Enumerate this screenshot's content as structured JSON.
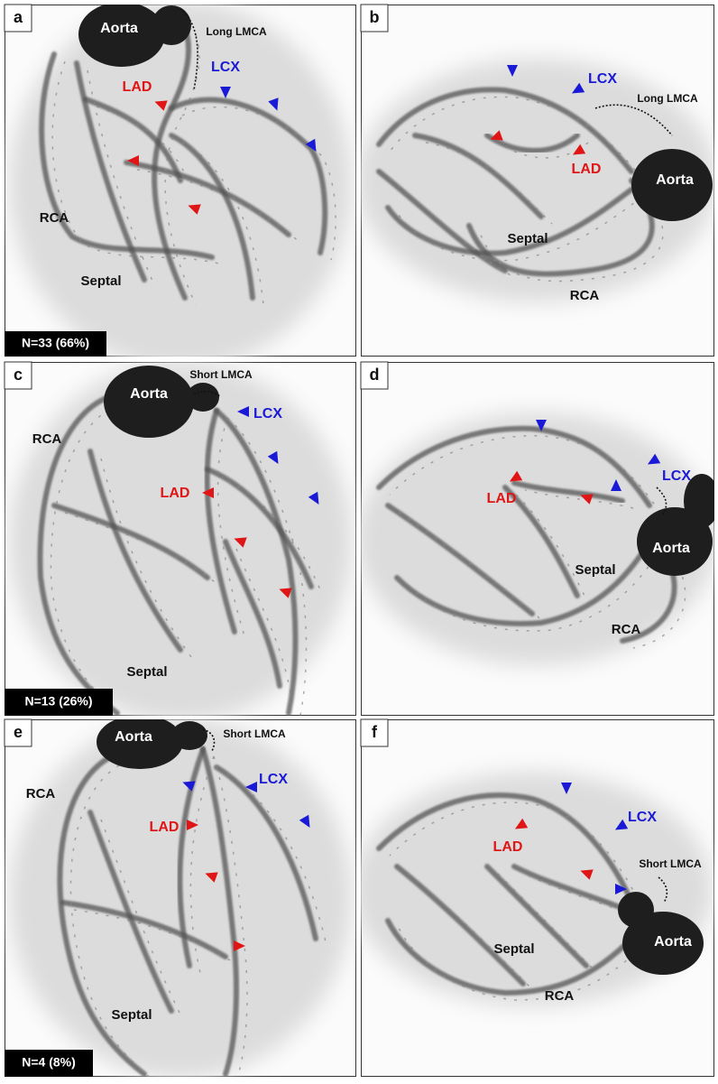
{
  "panels": [
    {
      "letter": "a",
      "aorta": "Aorta",
      "lmca": "Long LMCA",
      "lcx": "LCX",
      "lad": "LAD",
      "rca": "RCA",
      "septal": "Septal",
      "count": "N=33 (66%)"
    },
    {
      "letter": "b",
      "aorta": "Aorta",
      "lmca": "Long LMCA",
      "lcx": "LCX",
      "lad": "LAD",
      "rca": "RCA",
      "septal": "Septal"
    },
    {
      "letter": "c",
      "aorta": "Aorta",
      "lmca": "Short LMCA",
      "lcx": "LCX",
      "lad": "LAD",
      "rca": "RCA",
      "septal": "Septal",
      "count": "N=13 (26%)"
    },
    {
      "letter": "d",
      "aorta": "Aorta",
      "lcx": "LCX",
      "lad": "LAD",
      "rca": "RCA",
      "septal": "Septal"
    },
    {
      "letter": "e",
      "aorta": "Aorta",
      "lmca": "Short LMCA",
      "lcx": "LCX",
      "lad": "LAD",
      "rca": "RCA",
      "septal": "Septal",
      "count": "N=4 (8%)"
    },
    {
      "letter": "f",
      "aorta": "Aorta",
      "lmca": "Short LMCA",
      "lcx": "LCX",
      "lad": "LAD",
      "rca": "RCA",
      "septal": "Septal"
    }
  ]
}
